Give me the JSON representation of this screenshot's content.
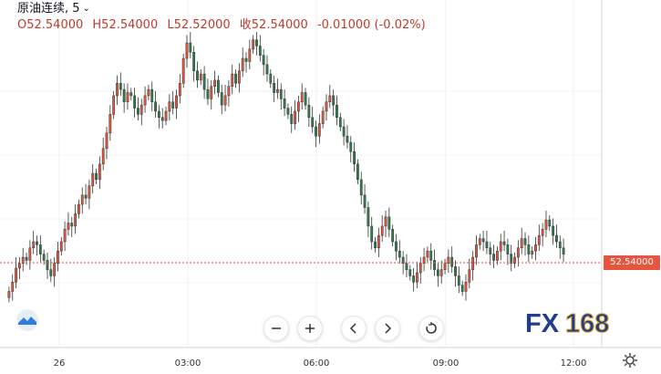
{
  "legend": {
    "symbol": "原油连续, 5",
    "open": "O52.54000",
    "high": "H52.54000",
    "low": "L52.52000",
    "close": "收52.54000",
    "change": "-0.01000 (-0.02%)"
  },
  "price_tag": "52.54000",
  "toolbar": [
    "zoom-out",
    "zoom-in",
    "scroll-left",
    "scroll-right",
    "reset"
  ],
  "logo": {
    "text_fx": "FX",
    "text_num": "168"
  },
  "colors": {
    "up": "#e3563f",
    "down": "#2e7d4f",
    "current_line": "#e3563f"
  },
  "chart_data": {
    "type": "candlestick",
    "interval": "5 min",
    "x_tick_labels": [
      "26",
      "03:00",
      "06:00",
      "09:00",
      "12:00"
    ],
    "current_price": 52.54,
    "series_close": [
      52.3,
      52.36,
      52.45,
      52.48,
      52.52,
      52.5,
      52.58,
      52.62,
      52.6,
      52.54,
      52.5,
      52.44,
      52.4,
      52.48,
      52.56,
      52.62,
      52.7,
      52.74,
      52.72,
      52.8,
      52.86,
      52.92,
      52.9,
      52.98,
      53.06,
      53.02,
      53.12,
      53.22,
      53.32,
      53.44,
      53.56,
      53.64,
      53.6,
      53.52,
      53.58,
      53.56,
      53.48,
      53.44,
      53.5,
      53.56,
      53.6,
      53.52,
      53.46,
      53.42,
      53.4,
      53.46,
      53.52,
      53.48,
      53.56,
      53.64,
      53.8,
      53.9,
      53.84,
      53.72,
      53.66,
      53.7,
      53.6,
      53.54,
      53.62,
      53.66,
      53.58,
      53.5,
      53.56,
      53.62,
      53.7,
      53.64,
      53.72,
      53.8,
      53.78,
      53.86,
      53.92,
      53.88,
      53.82,
      53.76,
      53.7,
      53.64,
      53.58,
      53.6,
      53.54,
      53.48,
      53.44,
      53.38,
      53.46,
      53.52,
      53.58,
      53.5,
      53.42,
      53.36,
      53.3,
      53.38,
      53.46,
      53.52,
      53.56,
      53.5,
      53.42,
      53.36,
      53.3,
      53.26,
      53.2,
      53.12,
      53.02,
      52.92,
      52.84,
      52.72,
      52.62,
      52.58,
      52.66,
      52.72,
      52.78,
      52.7,
      52.62,
      52.56,
      52.52,
      52.48,
      52.44,
      52.4,
      52.36,
      52.42,
      52.48,
      52.52,
      52.56,
      52.5,
      52.44,
      52.4,
      52.44,
      52.48,
      52.52,
      52.46,
      52.4,
      52.34,
      52.3,
      52.36,
      52.44,
      52.52,
      52.6,
      52.64,
      52.62,
      52.58,
      52.54,
      52.5,
      52.56,
      52.62,
      52.6,
      52.54,
      52.48,
      52.52,
      52.58,
      52.64,
      52.6,
      52.54,
      52.56,
      52.6,
      52.66,
      52.7,
      52.76,
      52.72,
      52.66,
      52.62,
      52.58,
      52.54
    ]
  }
}
